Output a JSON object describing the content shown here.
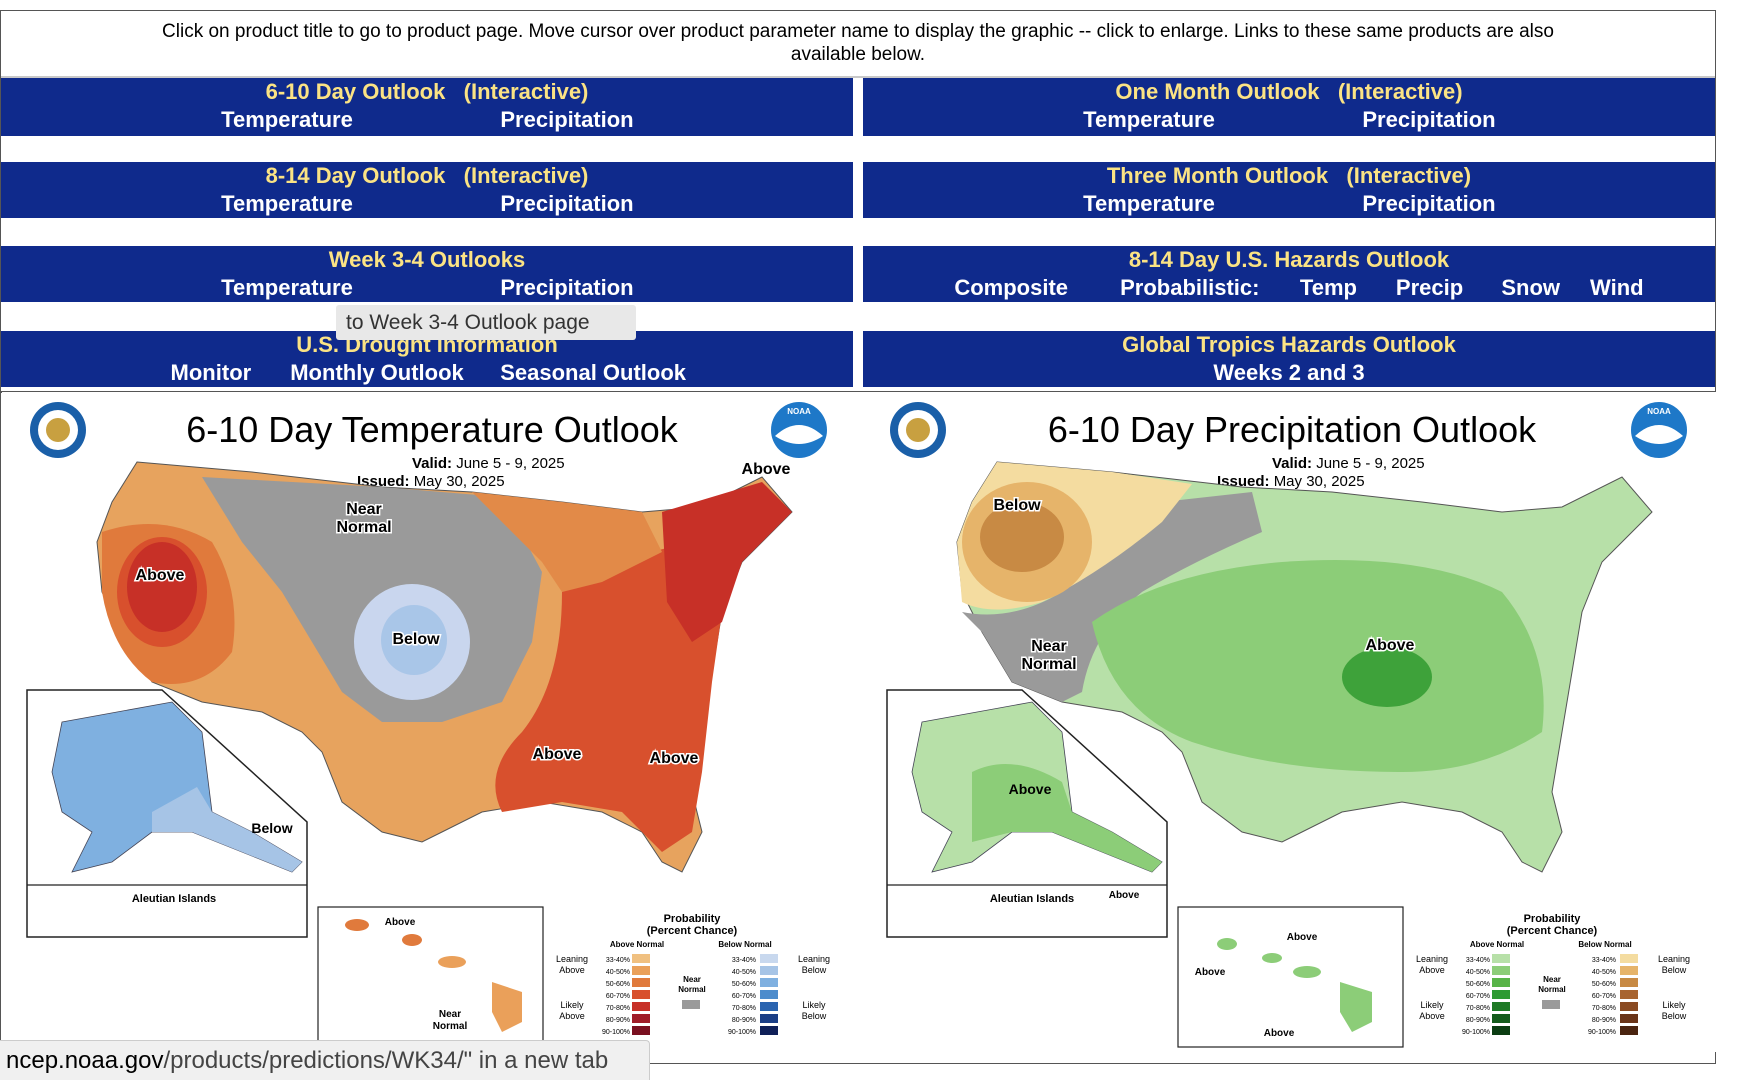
{
  "intro": {
    "line1": "Click on product title to go to product page. Move cursor over product parameter name to display the graphic -- click to enlarge. Links to these same products are also",
    "line2": "available below."
  },
  "nav": {
    "six_ten": {
      "title": "6-10 Day Outlook",
      "interactive": "(Interactive)",
      "temp": "Temperature",
      "precip": "Precipitation"
    },
    "one_month": {
      "title": "One Month Outlook",
      "interactive": "(Interactive)",
      "temp": "Temperature",
      "precip": "Precipitation"
    },
    "eight_fourteen": {
      "title": "8-14 Day Outlook",
      "interactive": "(Interactive)",
      "temp": "Temperature",
      "precip": "Precipitation"
    },
    "three_month": {
      "title": "Three Month Outlook",
      "interactive": "(Interactive)",
      "temp": "Temperature",
      "precip": "Precipitation"
    },
    "week34": {
      "title": "Week 3-4 Outlooks",
      "temp": "Temperature",
      "precip": "Precipitation"
    },
    "hazards": {
      "title": "8-14 Day U.S. Hazards Outlook",
      "composite": "Composite",
      "probabilistic": "Probabilistic:",
      "temp": "Temp",
      "precip": "Precip",
      "snow": "Snow",
      "wind": "Wind"
    },
    "drought": {
      "title": "U.S. Drought Information",
      "monitor": "Monitor",
      "monthly": "Monthly Outlook",
      "seasonal": "Seasonal Outlook"
    },
    "tropics": {
      "title": "Global Tropics Hazards Outlook",
      "weeks": "Weeks 2 and 3"
    }
  },
  "tooltip": "to Week 3-4 Outlook page",
  "temp_map": {
    "title": "6-10 Day Temperature Outlook",
    "valid_label": "Valid:",
    "valid": "June 5 - 9, 2025",
    "issued_label": "Issued:",
    "issued": "May 30, 2025",
    "labels": {
      "near_normal": [
        "Near",
        "Normal"
      ],
      "above_west": "Above",
      "below": "Below",
      "above_ne": "Above",
      "above_gulf": "Above",
      "above_fl": "Above",
      "alaska_below": "Below",
      "hawaii_above": "Above",
      "hawaii_near": [
        "Near",
        "Normal"
      ]
    },
    "aleutian": "Aleutian Islands",
    "legend": {
      "title": [
        "Probability",
        "(Percent Chance)"
      ],
      "above_head": "Above Normal",
      "below_head": "Below Normal",
      "near": [
        "Near",
        "Normal"
      ],
      "leaning_above": [
        "Leaning",
        "Above"
      ],
      "likely_above": [
        "Likely",
        "Above"
      ],
      "leaning_below": [
        "Leaning",
        "Below"
      ],
      "likely_below": [
        "Likely",
        "Below"
      ],
      "ranges": [
        "33-40%",
        "40-50%",
        "50-60%",
        "60-70%",
        "70-80%",
        "80-90%",
        "90-100%"
      ],
      "above_colors": [
        "#f0c080",
        "#eaa05a",
        "#e07a3c",
        "#d8502d",
        "#c73027",
        "#a01c28",
        "#7a1020"
      ],
      "below_colors": [
        "#c8d8ee",
        "#a6c4e6",
        "#7fb0e0",
        "#4d8ccc",
        "#2a64b0",
        "#1a3e86",
        "#0f2058"
      ]
    }
  },
  "precip_map": {
    "title": "6-10 Day Precipitation Outlook",
    "valid_label": "Valid:",
    "valid": "June 5 - 9, 2025",
    "issued_label": "Issued:",
    "issued": "May 30, 2025",
    "labels": {
      "below": "Below",
      "near_normal": [
        "Near",
        "Normal"
      ],
      "above_center": "Above",
      "alaska_above": "Above",
      "hawaii_above1": "Above",
      "hawaii_above2": "Above",
      "hawaii_above3": "Above",
      "aleutian_above": "Above"
    },
    "aleutian": "Aleutian Islands",
    "legend": {
      "title": [
        "Probability",
        "(Percent Chance)"
      ],
      "above_head": "Above Normal",
      "below_head": "Below Normal",
      "near": [
        "Near",
        "Normal"
      ],
      "leaning_above": [
        "Leaning",
        "Above"
      ],
      "likely_above": [
        "Likely",
        "Above"
      ],
      "leaning_below": [
        "Leaning",
        "Below"
      ],
      "likely_below": [
        "Likely",
        "Below"
      ],
      "ranges": [
        "33-40%",
        "40-50%",
        "50-60%",
        "60-70%",
        "70-80%",
        "80-90%",
        "90-100%"
      ],
      "above_colors": [
        "#b7e0a8",
        "#8ccd78",
        "#58b448",
        "#2e9a32",
        "#1e7a26",
        "#145c1c",
        "#0b3d12"
      ],
      "below_colors": [
        "#f4dca0",
        "#e6b46a",
        "#c88a44",
        "#a86430",
        "#8a4a22",
        "#6a3418",
        "#4a2410"
      ]
    }
  },
  "status": {
    "host": "ncep.noaa.gov",
    "path": "/products/predictions/WK34/\" in a new tab"
  }
}
